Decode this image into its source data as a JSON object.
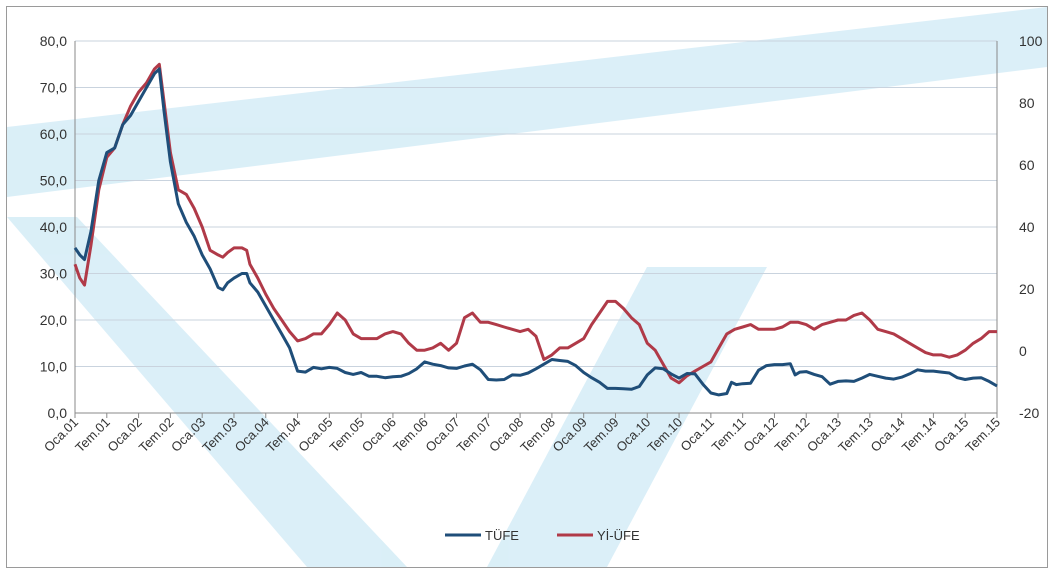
{
  "chart_data": {
    "type": "line",
    "title": "",
    "x_tick_labels": [
      "Oca.01",
      "Tem.01",
      "Oca.02",
      "Tem.02",
      "Oca.03",
      "Tem.03",
      "Oca.04",
      "Tem.04",
      "Oca.05",
      "Tem.05",
      "Oca.06",
      "Tem.06",
      "Oca.07",
      "Tem.07",
      "Oca.08",
      "Tem.08",
      "Oca.09",
      "Tem.09",
      "Oca.10",
      "Tem.10",
      "Oca.11",
      "Tem.11",
      "Oca.12",
      "Tem.12",
      "Oca.13",
      "Tem.13",
      "Oca.14",
      "Tem.14",
      "Oca.15",
      "Tem.15"
    ],
    "y_left": {
      "ticks": [
        "0,0",
        "10,0",
        "20,0",
        "30,0",
        "40,0",
        "50,0",
        "60,0",
        "70,0",
        "80,0"
      ],
      "lim": [
        0,
        80
      ]
    },
    "y_right": {
      "ticks": [
        "-20",
        "0",
        "20",
        "40",
        "60",
        "80",
        "100"
      ],
      "lim": [
        -20,
        100
      ]
    },
    "series": [
      {
        "name": "TÜFE",
        "axis": "left",
        "color": "#1f4e79",
        "points": [
          [
            0,
            35.5
          ],
          [
            0.3,
            34
          ],
          [
            0.6,
            33
          ],
          [
            1,
            39
          ],
          [
            1.5,
            50
          ],
          [
            2,
            56
          ],
          [
            2.5,
            57
          ],
          [
            3,
            62
          ],
          [
            3.5,
            64
          ],
          [
            4,
            67
          ],
          [
            4.5,
            70
          ],
          [
            5,
            73
          ],
          [
            5.3,
            74
          ],
          [
            5.6,
            65
          ],
          [
            6,
            54
          ],
          [
            6.5,
            45
          ],
          [
            7,
            41
          ],
          [
            7.5,
            38
          ],
          [
            8,
            34
          ],
          [
            8.5,
            31
          ],
          [
            9,
            27
          ],
          [
            9.3,
            26.5
          ],
          [
            9.6,
            28
          ],
          [
            10,
            29
          ],
          [
            10.5,
            30
          ],
          [
            10.8,
            30
          ],
          [
            11,
            28
          ],
          [
            11.5,
            26
          ],
          [
            12,
            23
          ],
          [
            12.5,
            20
          ],
          [
            13,
            17
          ],
          [
            13.5,
            14
          ],
          [
            13.8,
            11
          ],
          [
            14,
            9
          ],
          [
            14.5,
            8.8
          ],
          [
            15,
            9.8
          ],
          [
            15.5,
            9.5
          ],
          [
            16,
            9.8
          ],
          [
            16.5,
            9.6
          ],
          [
            17,
            8.7
          ],
          [
            17.5,
            8.3
          ],
          [
            18,
            8.7
          ],
          [
            18.5,
            7.9
          ],
          [
            19,
            7.9
          ],
          [
            19.5,
            7.6
          ],
          [
            20,
            7.8
          ],
          [
            20.5,
            7.9
          ],
          [
            21,
            8.5
          ],
          [
            21.5,
            9.5
          ],
          [
            22,
            11
          ],
          [
            22.5,
            10.5
          ],
          [
            23,
            10.2
          ],
          [
            23.5,
            9.7
          ],
          [
            24,
            9.6
          ],
          [
            24.5,
            10.1
          ],
          [
            25,
            10.5
          ],
          [
            25.5,
            9.3
          ],
          [
            26,
            7.2
          ],
          [
            26.5,
            7.1
          ],
          [
            27,
            7.2
          ],
          [
            27.5,
            8.2
          ],
          [
            28,
            8.1
          ],
          [
            28.5,
            8.6
          ],
          [
            29,
            9.5
          ],
          [
            29.5,
            10.5
          ],
          [
            30,
            11.5
          ],
          [
            30.5,
            11.3
          ],
          [
            31,
            11.1
          ],
          [
            31.5,
            10.2
          ],
          [
            32,
            8.7
          ],
          [
            32.5,
            7.6
          ],
          [
            33,
            6.6
          ],
          [
            33.5,
            5.3
          ],
          [
            34,
            5.3
          ],
          [
            34.5,
            5.2
          ],
          [
            35,
            5.1
          ],
          [
            35.5,
            5.7
          ],
          [
            36,
            8.2
          ],
          [
            36.5,
            9.7
          ],
          [
            37,
            9.5
          ],
          [
            37.5,
            8.4
          ],
          [
            38,
            7.5
          ],
          [
            38.5,
            8.5
          ],
          [
            39,
            8.4
          ],
          [
            39.5,
            6.2
          ],
          [
            40,
            4.3
          ],
          [
            40.5,
            3.9
          ],
          [
            41,
            4.2
          ],
          [
            41.3,
            6.6
          ],
          [
            41.6,
            6.1
          ],
          [
            42,
            6.3
          ],
          [
            42.5,
            6.4
          ],
          [
            43,
            9.2
          ],
          [
            43.5,
            10.2
          ],
          [
            44,
            10.4
          ],
          [
            44.5,
            10.4
          ],
          [
            45,
            10.6
          ],
          [
            45.3,
            8.2
          ],
          [
            45.6,
            8.8
          ],
          [
            46,
            8.9
          ],
          [
            46.5,
            8.3
          ],
          [
            47,
            7.8
          ],
          [
            47.5,
            6.2
          ],
          [
            48,
            6.8
          ],
          [
            48.5,
            6.9
          ],
          [
            49,
            6.8
          ],
          [
            49.5,
            7.5
          ],
          [
            50,
            8.3
          ],
          [
            50.5,
            7.9
          ],
          [
            51,
            7.5
          ],
          [
            51.5,
            7.3
          ],
          [
            52,
            7.7
          ],
          [
            52.5,
            8.4
          ],
          [
            53,
            9.3
          ],
          [
            53.5,
            9.0
          ],
          [
            54,
            9.0
          ],
          [
            54.5,
            8.8
          ],
          [
            55,
            8.6
          ],
          [
            55.5,
            7.6
          ],
          [
            56,
            7.2
          ],
          [
            56.5,
            7.5
          ],
          [
            57,
            7.6
          ],
          [
            57.5,
            6.8
          ],
          [
            58,
            5.8
          ]
        ]
      },
      {
        "name": "Yİ-ÜFE",
        "axis": "left",
        "color": "#b03a48",
        "points": [
          [
            0,
            32
          ],
          [
            0.3,
            29
          ],
          [
            0.6,
            27.5
          ],
          [
            1,
            36
          ],
          [
            1.5,
            48
          ],
          [
            2,
            55
          ],
          [
            2.5,
            57
          ],
          [
            3,
            62
          ],
          [
            3.5,
            66
          ],
          [
            4,
            69
          ],
          [
            4.5,
            71
          ],
          [
            5,
            74
          ],
          [
            5.3,
            75
          ],
          [
            5.6,
            67
          ],
          [
            6,
            56
          ],
          [
            6.5,
            48
          ],
          [
            7,
            47
          ],
          [
            7.5,
            44
          ],
          [
            8,
            40
          ],
          [
            8.5,
            35
          ],
          [
            9,
            34
          ],
          [
            9.3,
            33.5
          ],
          [
            9.6,
            34.5
          ],
          [
            10,
            35.5
          ],
          [
            10.5,
            35.5
          ],
          [
            10.8,
            35
          ],
          [
            11,
            32
          ],
          [
            11.5,
            29
          ],
          [
            12,
            25.5
          ],
          [
            12.5,
            22.5
          ],
          [
            13,
            20
          ],
          [
            13.5,
            17.5
          ],
          [
            14,
            15.5
          ],
          [
            14.5,
            16
          ],
          [
            15,
            17
          ],
          [
            15.5,
            17
          ],
          [
            16,
            19
          ],
          [
            16.5,
            21.5
          ],
          [
            17,
            20
          ],
          [
            17.5,
            17
          ],
          [
            18,
            16
          ],
          [
            18.5,
            16
          ],
          [
            19,
            16
          ],
          [
            19.5,
            17
          ],
          [
            20,
            17.5
          ],
          [
            20.5,
            17
          ],
          [
            21,
            15
          ],
          [
            21.5,
            13.5
          ],
          [
            22,
            13.5
          ],
          [
            22.5,
            14
          ],
          [
            23,
            15
          ],
          [
            23.5,
            13.5
          ],
          [
            24,
            15
          ],
          [
            24.5,
            20.5
          ],
          [
            25,
            21.5
          ],
          [
            25.5,
            19.5
          ],
          [
            26,
            19.5
          ],
          [
            26.5,
            19
          ],
          [
            27,
            18.5
          ],
          [
            27.5,
            18
          ],
          [
            28,
            17.5
          ],
          [
            28.5,
            18
          ],
          [
            29,
            16.5
          ],
          [
            29.5,
            11.5
          ],
          [
            30,
            12.5
          ],
          [
            30.5,
            14
          ],
          [
            31,
            14
          ],
          [
            31.5,
            15
          ],
          [
            32,
            16
          ],
          [
            32.5,
            19
          ],
          [
            33,
            21.5
          ],
          [
            33.5,
            24
          ],
          [
            34,
            24
          ],
          [
            34.5,
            22.5
          ],
          [
            35,
            20.5
          ],
          [
            35.5,
            19
          ],
          [
            36,
            15
          ],
          [
            36.5,
            13.5
          ],
          [
            37,
            10.5
          ],
          [
            37.5,
            7.5
          ],
          [
            38,
            6.5
          ],
          [
            38.5,
            8
          ],
          [
            39,
            9
          ],
          [
            39.5,
            10
          ],
          [
            40,
            11
          ],
          [
            40.5,
            14
          ],
          [
            41,
            17
          ],
          [
            41.5,
            18
          ],
          [
            42,
            18.5
          ],
          [
            42.5,
            19
          ],
          [
            43,
            18
          ],
          [
            43.5,
            18
          ],
          [
            44,
            18
          ],
          [
            44.5,
            18.5
          ],
          [
            45,
            19.5
          ],
          [
            45.5,
            19.5
          ],
          [
            46,
            19
          ],
          [
            46.5,
            18
          ],
          [
            47,
            19
          ],
          [
            47.5,
            19.5
          ],
          [
            48,
            20
          ],
          [
            48.5,
            20
          ],
          [
            49,
            21
          ],
          [
            49.5,
            21.5
          ],
          [
            50,
            20
          ],
          [
            50.5,
            18
          ],
          [
            51,
            17.5
          ],
          [
            51.5,
            17
          ],
          [
            52,
            16
          ],
          [
            52.5,
            15
          ],
          [
            53,
            14
          ],
          [
            53.5,
            13
          ],
          [
            54,
            12.5
          ],
          [
            54.5,
            12.5
          ],
          [
            55,
            12
          ],
          [
            55.5,
            12.5
          ],
          [
            56,
            13.5
          ],
          [
            56.5,
            15
          ],
          [
            57,
            16
          ],
          [
            57.5,
            17.5
          ],
          [
            58,
            17.5
          ]
        ]
      }
    ],
    "legend": {
      "placement": "bottom-center"
    }
  }
}
